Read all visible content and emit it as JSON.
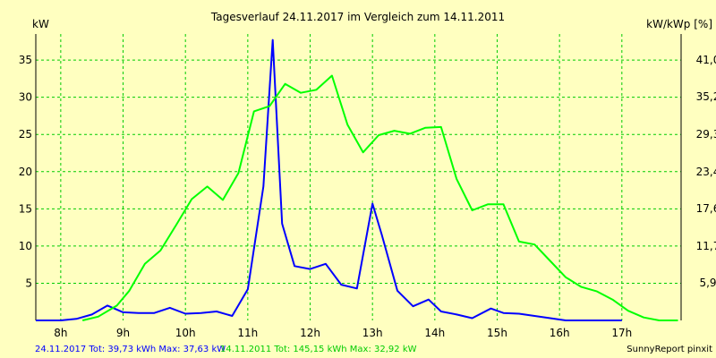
{
  "chart_data": {
    "type": "line",
    "title": "Tagesverlauf 24.11.2017 im Vergleich zum 14.11.2011",
    "ylabel_left": "kW",
    "ylabel_right": "kW/kWp [%]",
    "ylim": [
      0,
      38.5
    ],
    "right_axis_scale": 1.1705,
    "xlim": [
      7.6,
      17.95
    ],
    "x_ticks": [
      8,
      9,
      10,
      11,
      12,
      13,
      14,
      15,
      16,
      17
    ],
    "x_tick_labels": [
      "8h",
      "9h",
      "10h",
      "11h",
      "12h",
      "13h",
      "14h",
      "15h",
      "16h",
      "17h"
    ],
    "y_ticks_left": [
      5,
      10,
      15,
      20,
      25,
      30,
      35
    ],
    "y_tick_labels_left": [
      "5",
      "10",
      "15",
      "20",
      "25",
      "30",
      "35"
    ],
    "y_ticks_right": [
      5.04,
      10.0,
      15.04,
      20.0,
      25.04,
      30.07,
      35.03
    ],
    "y_tick_labels_right": [
      "5,9",
      "11,7",
      "17,6",
      "23,4",
      "29,3",
      "35,2",
      "41,0"
    ],
    "grid": true,
    "series": [
      {
        "name": "24.11.2017",
        "color": "#0000ff",
        "x": [
          7.6,
          8.0,
          8.25,
          8.5,
          8.75,
          9.0,
          9.25,
          9.5,
          9.75,
          10.0,
          10.25,
          10.5,
          10.75,
          11.0,
          11.25,
          11.4,
          11.55,
          11.75,
          12.0,
          12.25,
          12.5,
          12.75,
          13.0,
          13.15,
          13.4,
          13.65,
          13.9,
          14.1,
          14.35,
          14.6,
          14.9,
          15.1,
          15.35,
          15.6,
          15.85,
          16.1,
          16.35,
          16.6,
          16.85,
          17.0
        ],
        "y": [
          0,
          0,
          0.2,
          0.8,
          2,
          1.1,
          1,
          1,
          1.7,
          0.9,
          1,
          1.2,
          0.6,
          4.2,
          18,
          37.7,
          13,
          7.3,
          6.9,
          7.6,
          4.8,
          4.3,
          15.7,
          11.5,
          4,
          1.9,
          2.8,
          1.2,
          0.8,
          0.3,
          1.6,
          1,
          0.9,
          0.6,
          0.3,
          0,
          0,
          0,
          0,
          0
        ]
      },
      {
        "name": "14.11.2011",
        "color": "#00ff00",
        "x": [
          8.35,
          8.6,
          8.9,
          9.1,
          9.35,
          9.6,
          9.85,
          10.1,
          10.35,
          10.6,
          10.85,
          11.1,
          11.35,
          11.6,
          11.85,
          12.1,
          12.35,
          12.6,
          12.85,
          13.1,
          13.35,
          13.6,
          13.85,
          14.1,
          14.35,
          14.6,
          14.85,
          15.1,
          15.35,
          15.6,
          15.85,
          16.1,
          16.35,
          16.6,
          16.85,
          17.1,
          17.35,
          17.6,
          17.9
        ],
        "y": [
          0,
          0.5,
          2,
          4,
          7.6,
          9.4,
          12.8,
          16.3,
          18,
          16.2,
          19.8,
          28.1,
          28.8,
          31.8,
          30.6,
          31,
          32.9,
          26.3,
          22.6,
          24.9,
          25.5,
          25.1,
          25.9,
          26,
          19,
          14.8,
          15.6,
          15.6,
          10.6,
          10.2,
          8,
          5.8,
          4.5,
          3.9,
          2.8,
          1.3,
          0.4,
          0,
          0
        ]
      }
    ]
  },
  "footer": {
    "legend_a": "24.11.2017 Tot: 39,73 kWh Max: 37,63 kW",
    "legend_b": "14.11.2011 Tot: 145,15 kWh Max: 32,92 kW",
    "credit": "SunnyReport pinxit"
  },
  "colors": {
    "background": "#ffffc0",
    "grid": "#00cc00",
    "axis": "#000000",
    "series_a": "#0000ff",
    "series_b": "#00ff00",
    "legend_b_text": "#00cc00"
  }
}
